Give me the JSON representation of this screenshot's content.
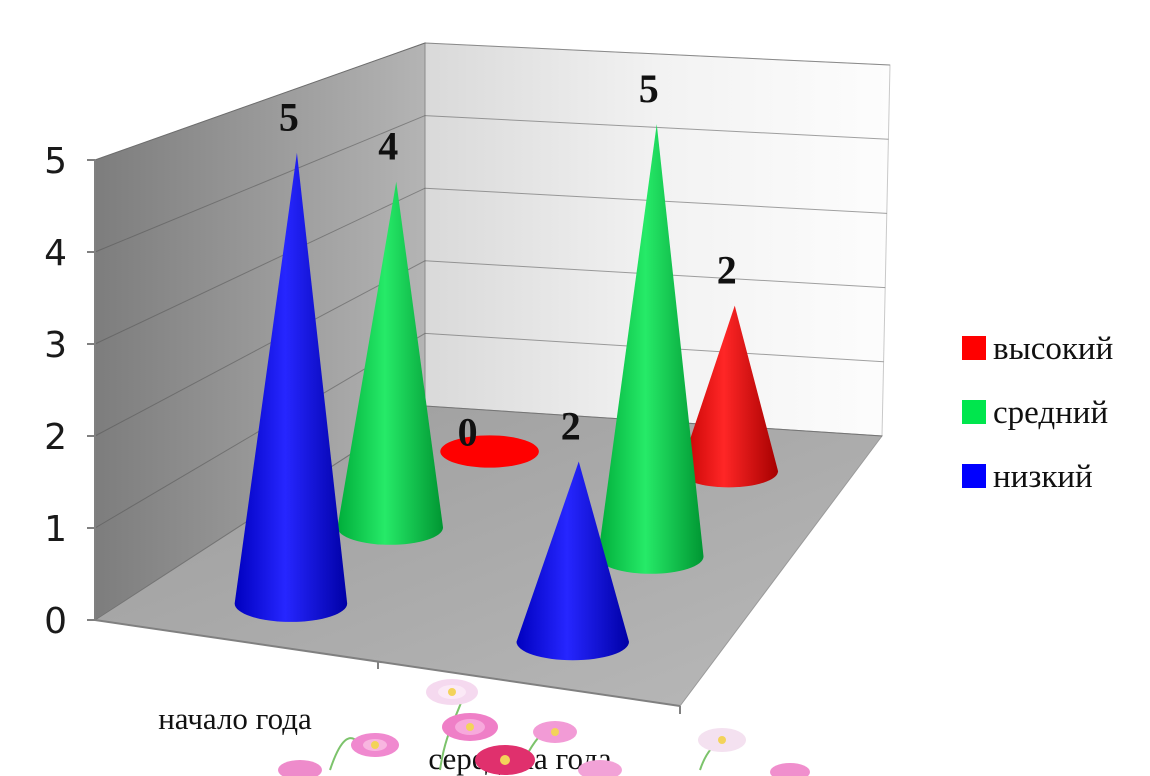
{
  "chart_data": {
    "type": "bar",
    "chart_subtype": "3d-cone",
    "categories": [
      "начало года",
      "середина года"
    ],
    "series": [
      {
        "name": "высокий",
        "color": "#ff0000",
        "values": [
          0,
          2
        ]
      },
      {
        "name": "средний",
        "color": "#00e64d",
        "values": [
          4,
          5
        ]
      },
      {
        "name": "низкий",
        "color": "#0000ff",
        "values": [
          5,
          2
        ]
      }
    ],
    "yticks": [
      "0",
      "1",
      "2",
      "3",
      "4",
      "5"
    ],
    "ylim": [
      0,
      5
    ],
    "grid": true,
    "legend": "right",
    "data_labels": true
  }
}
